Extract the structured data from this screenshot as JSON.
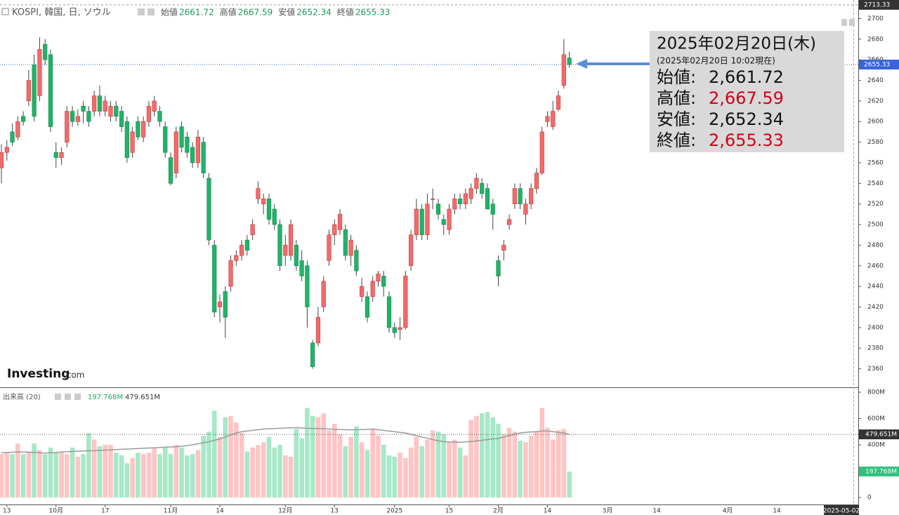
{
  "header": {
    "symbol": "KOSPI, 韓国, 日, ソウル",
    "items": [
      {
        "label": "始値",
        "value": "2661.72"
      },
      {
        "label": "高値",
        "value": "2667.59"
      },
      {
        "label": "安値",
        "value": "2652.34"
      },
      {
        "label": "終値",
        "value": "2655.33"
      }
    ]
  },
  "info_box": {
    "date": "2025年02月20日(木)",
    "asof": "(2025年02月20日 10:02現在)",
    "rows": [
      {
        "label": "始値",
        "sep": ":",
        "value": "2,661.72",
        "color": "#111111"
      },
      {
        "label": "高値",
        "sep": ":",
        "value": "2,667.59",
        "color": "#d0021b"
      },
      {
        "label": "安値",
        "sep": ":",
        "value": "2,652.34",
        "color": "#111111"
      },
      {
        "label": "終値",
        "sep": ":",
        "value": "2,655.33",
        "color": "#d0021b"
      }
    ]
  },
  "logo": {
    "brand": "Investing",
    "suffix": ".com"
  },
  "chart_data": {
    "type": "candlestick",
    "categories": [
      null,
      "13",
      null,
      null,
      null,
      null,
      null,
      null,
      null,
      null,
      "10月",
      null,
      null,
      null,
      null,
      null,
      null,
      null,
      null,
      "17",
      null,
      null,
      null,
      null,
      null,
      null,
      null,
      null,
      null,
      null,
      null,
      "11月",
      null,
      null,
      null,
      null,
      null,
      null,
      null,
      null,
      "14",
      null,
      null,
      null,
      null,
      null,
      null,
      null,
      null,
      null,
      null,
      null,
      "12月",
      null,
      null,
      null,
      null,
      null,
      null,
      null,
      null,
      "13",
      null,
      null,
      null,
      null,
      null,
      null,
      null,
      null,
      null,
      null,
      "2025",
      null,
      null,
      null,
      null,
      null,
      null,
      null,
      null,
      null,
      "15",
      null,
      null,
      null,
      null,
      null,
      null,
      null,
      null,
      "2月",
      null,
      null,
      null,
      null,
      null,
      null,
      null,
      null,
      "14",
      null,
      null,
      null,
      null
    ],
    "future_labels": [
      "3月",
      "14",
      "4月",
      "14"
    ],
    "cursor_date": "2025-05-02",
    "ohlc": [
      [
        2555,
        2578,
        2540,
        2570
      ],
      [
        2570,
        2582,
        2562,
        2575
      ],
      [
        2590,
        2598,
        2576,
        2580
      ],
      [
        2585,
        2605,
        2582,
        2600
      ],
      [
        2605,
        2610,
        2596,
        2600
      ],
      [
        2620,
        2650,
        2615,
        2640
      ],
      [
        2655,
        2665,
        2600,
        2605
      ],
      [
        2625,
        2682,
        2620,
        2670
      ],
      [
        2675,
        2680,
        2655,
        2660
      ],
      [
        2665,
        2670,
        2590,
        2595
      ],
      [
        2570,
        2580,
        2555,
        2565
      ],
      [
        2565,
        2575,
        2558,
        2570
      ],
      [
        2580,
        2615,
        2575,
        2610
      ],
      [
        2610,
        2615,
        2595,
        2600
      ],
      [
        2600,
        2612,
        2596,
        2605
      ],
      [
        2615,
        2620,
        2598,
        2610
      ],
      [
        2610,
        2615,
        2595,
        2600
      ],
      [
        2610,
        2630,
        2605,
        2625
      ],
      [
        2625,
        2635,
        2605,
        2610
      ],
      [
        2610,
        2625,
        2605,
        2620
      ],
      [
        2605,
        2620,
        2600,
        2615
      ],
      [
        2615,
        2620,
        2600,
        2605
      ],
      [
        2610,
        2615,
        2590,
        2595
      ],
      [
        2600,
        2605,
        2560,
        2565
      ],
      [
        2570,
        2595,
        2565,
        2590
      ],
      [
        2600,
        2605,
        2582,
        2585
      ],
      [
        2585,
        2605,
        2580,
        2600
      ],
      [
        2600,
        2620,
        2595,
        2615
      ],
      [
        2610,
        2625,
        2605,
        2620
      ],
      [
        2610,
        2615,
        2595,
        2600
      ],
      [
        2595,
        2600,
        2565,
        2570
      ],
      [
        2565,
        2570,
        2538,
        2540
      ],
      [
        2550,
        2595,
        2545,
        2590
      ],
      [
        2595,
        2600,
        2570,
        2575
      ],
      [
        2585,
        2590,
        2565,
        2570
      ],
      [
        2575,
        2580,
        2555,
        2560
      ],
      [
        2560,
        2592,
        2555,
        2585
      ],
      [
        2580,
        2585,
        2545,
        2550
      ],
      [
        2545,
        2550,
        2480,
        2485
      ],
      [
        2480,
        2485,
        2410,
        2415
      ],
      [
        2420,
        2432,
        2405,
        2425
      ],
      [
        2435,
        2440,
        2390,
        2410
      ],
      [
        2440,
        2470,
        2435,
        2465
      ],
      [
        2465,
        2475,
        2460,
        2470
      ],
      [
        2470,
        2485,
        2465,
        2480
      ],
      [
        2485,
        2490,
        2470,
        2475
      ],
      [
        2490,
        2505,
        2485,
        2500
      ],
      [
        2525,
        2542,
        2520,
        2535
      ],
      [
        2520,
        2530,
        2510,
        2525
      ],
      [
        2525,
        2530,
        2500,
        2505
      ],
      [
        2515,
        2520,
        2495,
        2500
      ],
      [
        2500,
        2505,
        2455,
        2460
      ],
      [
        2470,
        2490,
        2460,
        2480
      ],
      [
        2470,
        2505,
        2465,
        2500
      ],
      [
        2480,
        2485,
        2455,
        2460
      ],
      [
        2465,
        2475,
        2445,
        2450
      ],
      [
        2460,
        2465,
        2400,
        2420
      ],
      [
        2385,
        2388,
        2360,
        2362
      ],
      [
        2385,
        2420,
        2382,
        2410
      ],
      [
        2420,
        2450,
        2415,
        2445
      ],
      [
        2465,
        2495,
        2460,
        2490
      ],
      [
        2490,
        2505,
        2480,
        2500
      ],
      [
        2495,
        2515,
        2490,
        2510
      ],
      [
        2495,
        2500,
        2465,
        2470
      ],
      [
        2470,
        2490,
        2460,
        2485
      ],
      [
        2475,
        2480,
        2450,
        2455
      ],
      [
        2430,
        2448,
        2425,
        2440
      ],
      [
        2430,
        2435,
        2405,
        2410
      ],
      [
        2430,
        2450,
        2425,
        2445
      ],
      [
        2445,
        2455,
        2440,
        2452
      ],
      [
        2450,
        2455,
        2430,
        2440
      ],
      [
        2430,
        2435,
        2395,
        2400
      ],
      [
        2400,
        2405,
        2390,
        2395
      ],
      [
        2398,
        2410,
        2388,
        2400
      ],
      [
        2400,
        2455,
        2398,
        2450
      ],
      [
        2460,
        2495,
        2455,
        2490
      ],
      [
        2490,
        2525,
        2485,
        2515
      ],
      [
        2515,
        2520,
        2485,
        2490
      ],
      [
        2490,
        2530,
        2485,
        2520
      ],
      [
        2525,
        2535,
        2515,
        2525
      ],
      [
        2520,
        2525,
        2505,
        2510
      ],
      [
        2505,
        2510,
        2490,
        2500
      ],
      [
        2495,
        2520,
        2490,
        2515
      ],
      [
        2515,
        2530,
        2510,
        2525
      ],
      [
        2525,
        2530,
        2515,
        2520
      ],
      [
        2520,
        2535,
        2515,
        2530
      ],
      [
        2525,
        2540,
        2520,
        2535
      ],
      [
        2535,
        2550,
        2530,
        2545
      ],
      [
        2540,
        2545,
        2525,
        2530
      ],
      [
        2535,
        2540,
        2515,
        2515
      ],
      [
        2520,
        2525,
        2495,
        2510
      ],
      [
        2465,
        2470,
        2440,
        2450
      ],
      [
        2475,
        2485,
        2465,
        2480
      ],
      [
        2500,
        2510,
        2495,
        2505
      ],
      [
        2520,
        2540,
        2515,
        2535
      ],
      [
        2535,
        2540,
        2515,
        2520
      ],
      [
        2510,
        2525,
        2500,
        2520
      ],
      [
        2520,
        2540,
        2515,
        2535
      ],
      [
        2535,
        2555,
        2530,
        2550
      ],
      [
        2550,
        2595,
        2548,
        2590
      ],
      [
        2600,
        2610,
        2595,
        2605
      ],
      [
        2595,
        2620,
        2592,
        2610
      ],
      [
        2612,
        2630,
        2610,
        2625
      ],
      [
        2635,
        2680,
        2632,
        2665
      ],
      [
        2661.72,
        2667.59,
        2652.34,
        2655.33
      ]
    ],
    "up_color": "#f26b6b",
    "down_color": "#22b26a",
    "ylim": [
      2342,
      2718
    ],
    "yticks": [
      2360,
      2380,
      2400,
      2420,
      2440,
      2460,
      2480,
      2500,
      2520,
      2540,
      2560,
      2580,
      2600,
      2620,
      2640,
      2660,
      2680,
      2700
    ],
    "last_price": 2655.33,
    "top_price": 2713.33,
    "volume": {
      "name": "出来高 (20)",
      "last_label": "197.768M",
      "ma_label": "479.651M",
      "up_color": "#ffc4c4",
      "down_color": "#a6e8c8",
      "ma_color": "#9a9a9a",
      "values": [
        330,
        340,
        330,
        410,
        330,
        350,
        410,
        360,
        330,
        380,
        340,
        350,
        330,
        380,
        310,
        330,
        490,
        440,
        390,
        400,
        400,
        340,
        320,
        260,
        300,
        340,
        330,
        340,
        380,
        330,
        380,
        330,
        400,
        380,
        320,
        330,
        360,
        470,
        500,
        660,
        460,
        610,
        620,
        570,
        490,
        350,
        380,
        400,
        420,
        460,
        380,
        400,
        320,
        310,
        520,
        450,
        680,
        620,
        610,
        640,
        510,
        560,
        480,
        390,
        460,
        540,
        420,
        360,
        520,
        470,
        400,
        320,
        310,
        340,
        300,
        380,
        460,
        390,
        440,
        510,
        500,
        480,
        420,
        440,
        380,
        320,
        590,
        620,
        640,
        650,
        610,
        560,
        480,
        530,
        500,
        430,
        420,
        470,
        500,
        680,
        530,
        440,
        510,
        520,
        197.768
      ],
      "ma": [
        340,
        342,
        344,
        345,
        346,
        344,
        342,
        340,
        338,
        340,
        342,
        345,
        348,
        350,
        352,
        354,
        355,
        356,
        358,
        360,
        362,
        364,
        366,
        368,
        370,
        372,
        374,
        376,
        378,
        380,
        382,
        384,
        386,
        390,
        395,
        400,
        408,
        416,
        424,
        435,
        445,
        460,
        475,
        490,
        500,
        505,
        510,
        515,
        520,
        522,
        524,
        526,
        528,
        530,
        530,
        528,
        526,
        525,
        524,
        522,
        520,
        518,
        516,
        515,
        514,
        515,
        516,
        518,
        520,
        515,
        510,
        505,
        500,
        495,
        490,
        480,
        470,
        460,
        450,
        440,
        430,
        425,
        422,
        420,
        420,
        422,
        425,
        430,
        435,
        440,
        445,
        450,
        460,
        470,
        480,
        490,
        495,
        498,
        500,
        505,
        505,
        500,
        495,
        490,
        479.651
      ],
      "ylim": [
        -53,
        832
      ],
      "yticks": [
        {
          "value": 800,
          "label": "800M"
        },
        {
          "value": 600,
          "label": "600M"
        },
        {
          "value": 400,
          "label": "400M"
        },
        0
      ]
    }
  }
}
